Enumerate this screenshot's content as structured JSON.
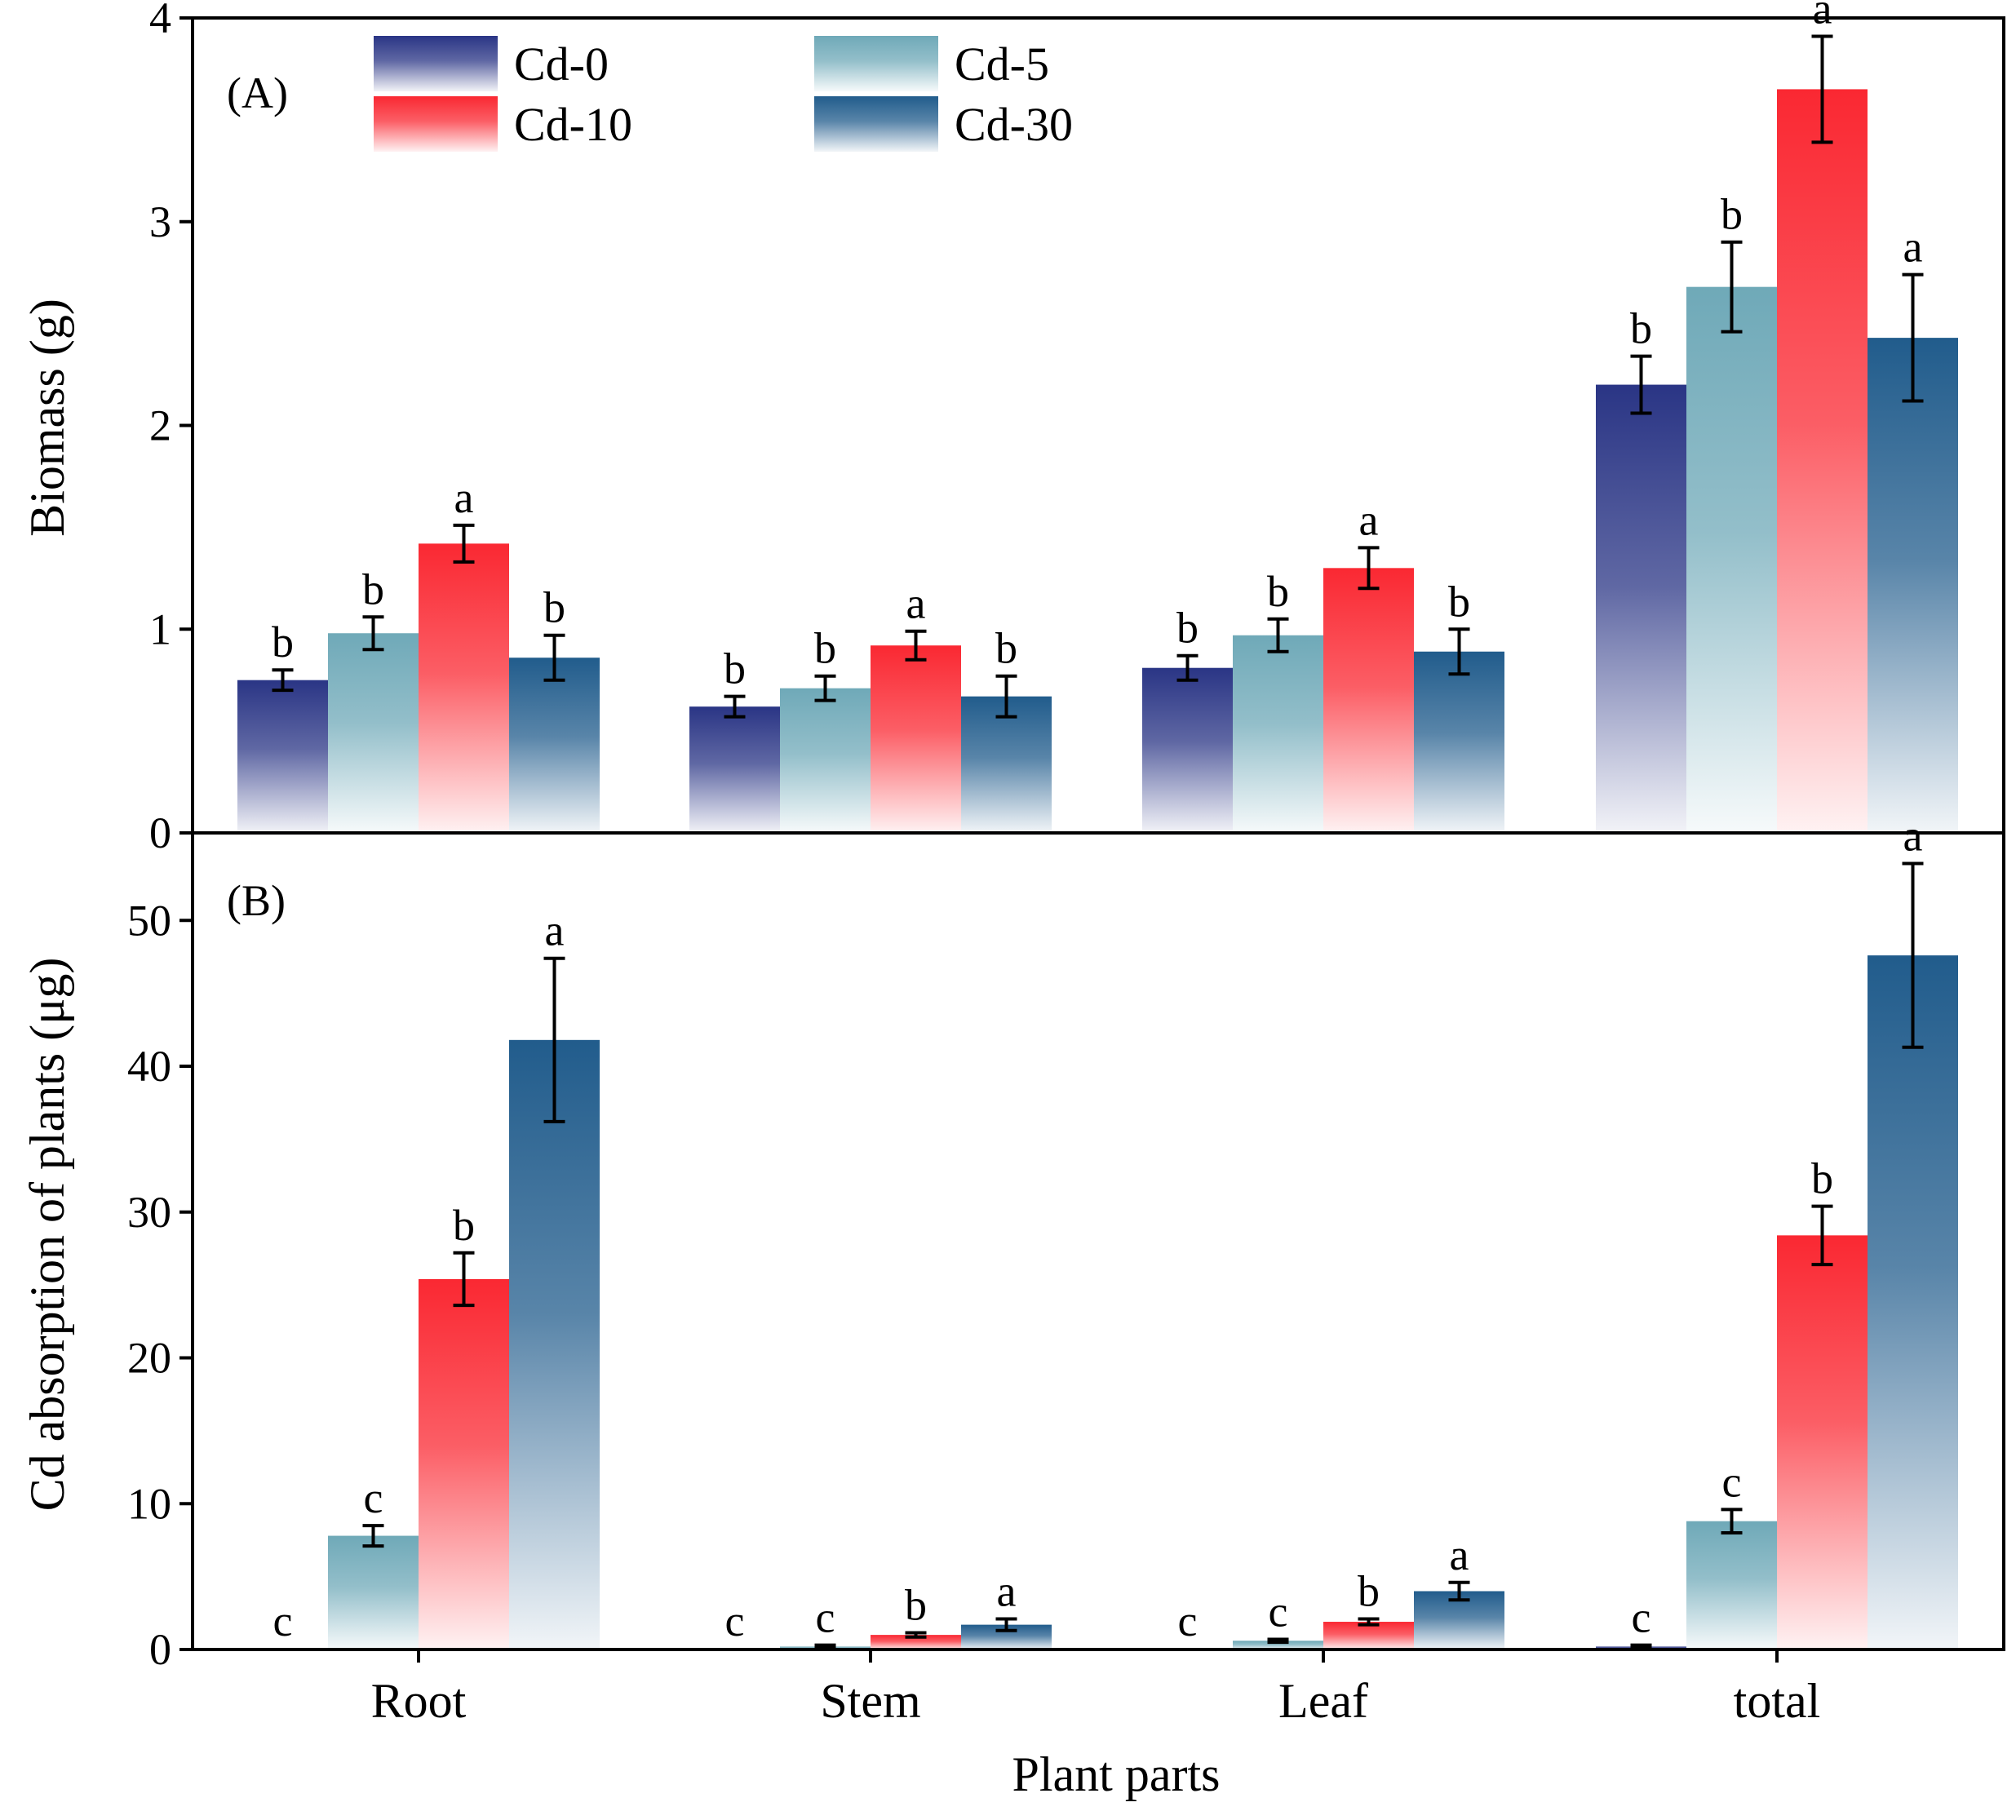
{
  "chart_data": [
    {
      "type": "bar",
      "panel": "(A)",
      "ylabel": "Biomass (g)",
      "xlabel": "",
      "ylim": [
        0,
        4
      ],
      "yticks": [
        "0",
        "1",
        "2",
        "3",
        "4"
      ],
      "categories": [
        "Root",
        "Stem",
        "Leaf",
        "total"
      ],
      "legend_position": "top-left",
      "series": [
        {
          "name": "Cd-0",
          "values": [
            0.75,
            0.62,
            0.81,
            2.2
          ],
          "errors": [
            0.05,
            0.05,
            0.06,
            0.14
          ],
          "labels": [
            "b",
            "b",
            "b",
            "b"
          ]
        },
        {
          "name": "Cd-5",
          "values": [
            0.98,
            0.71,
            0.97,
            2.68
          ],
          "errors": [
            0.08,
            0.06,
            0.08,
            0.22
          ],
          "labels": [
            "b",
            "b",
            "b",
            "b"
          ]
        },
        {
          "name": "Cd-10",
          "values": [
            1.42,
            0.92,
            1.3,
            3.65
          ],
          "errors": [
            0.09,
            0.07,
            0.1,
            0.26
          ],
          "labels": [
            "a",
            "a",
            "a",
            "a"
          ]
        },
        {
          "name": "Cd-30",
          "values": [
            0.86,
            0.67,
            0.89,
            2.43
          ],
          "errors": [
            0.11,
            0.1,
            0.11,
            0.31
          ],
          "labels": [
            "b",
            "b",
            "b",
            "a"
          ]
        }
      ]
    },
    {
      "type": "bar",
      "panel": "(B)",
      "ylabel": "Cd absorption of plants (μg)",
      "xlabel": "Plant parts",
      "ylim": [
        0,
        56
      ],
      "yticks": [
        "0",
        "10",
        "20",
        "30",
        "40",
        "50"
      ],
      "categories": [
        "Root",
        "Stem",
        "Leaf",
        "total"
      ],
      "series": [
        {
          "name": "Cd-0",
          "values": [
            0.05,
            0.05,
            0.05,
            0.2
          ],
          "errors": [
            0,
            0,
            0,
            0.1
          ],
          "labels": [
            "c",
            "c",
            "c",
            "c"
          ]
        },
        {
          "name": "Cd-5",
          "values": [
            7.8,
            0.2,
            0.6,
            8.8
          ],
          "errors": [
            0.7,
            0.1,
            0.1,
            0.8
          ],
          "labels": [
            "c",
            "c",
            "c",
            "c"
          ]
        },
        {
          "name": "Cd-10",
          "values": [
            25.4,
            1.0,
            1.9,
            28.4
          ],
          "errors": [
            1.8,
            0.15,
            0.2,
            2.0
          ],
          "labels": [
            "b",
            "b",
            "b",
            "b"
          ]
        },
        {
          "name": "Cd-30",
          "values": [
            41.8,
            1.7,
            4.0,
            47.6
          ],
          "errors": [
            5.6,
            0.4,
            0.6,
            6.3
          ],
          "labels": [
            "a",
            "a",
            "a",
            "a"
          ]
        }
      ]
    }
  ],
  "colors": {
    "Cd-0": "#2a3585",
    "Cd-5": "#6fa9b8",
    "Cd-10": "#fa2832",
    "Cd-30": "#215c8c"
  }
}
